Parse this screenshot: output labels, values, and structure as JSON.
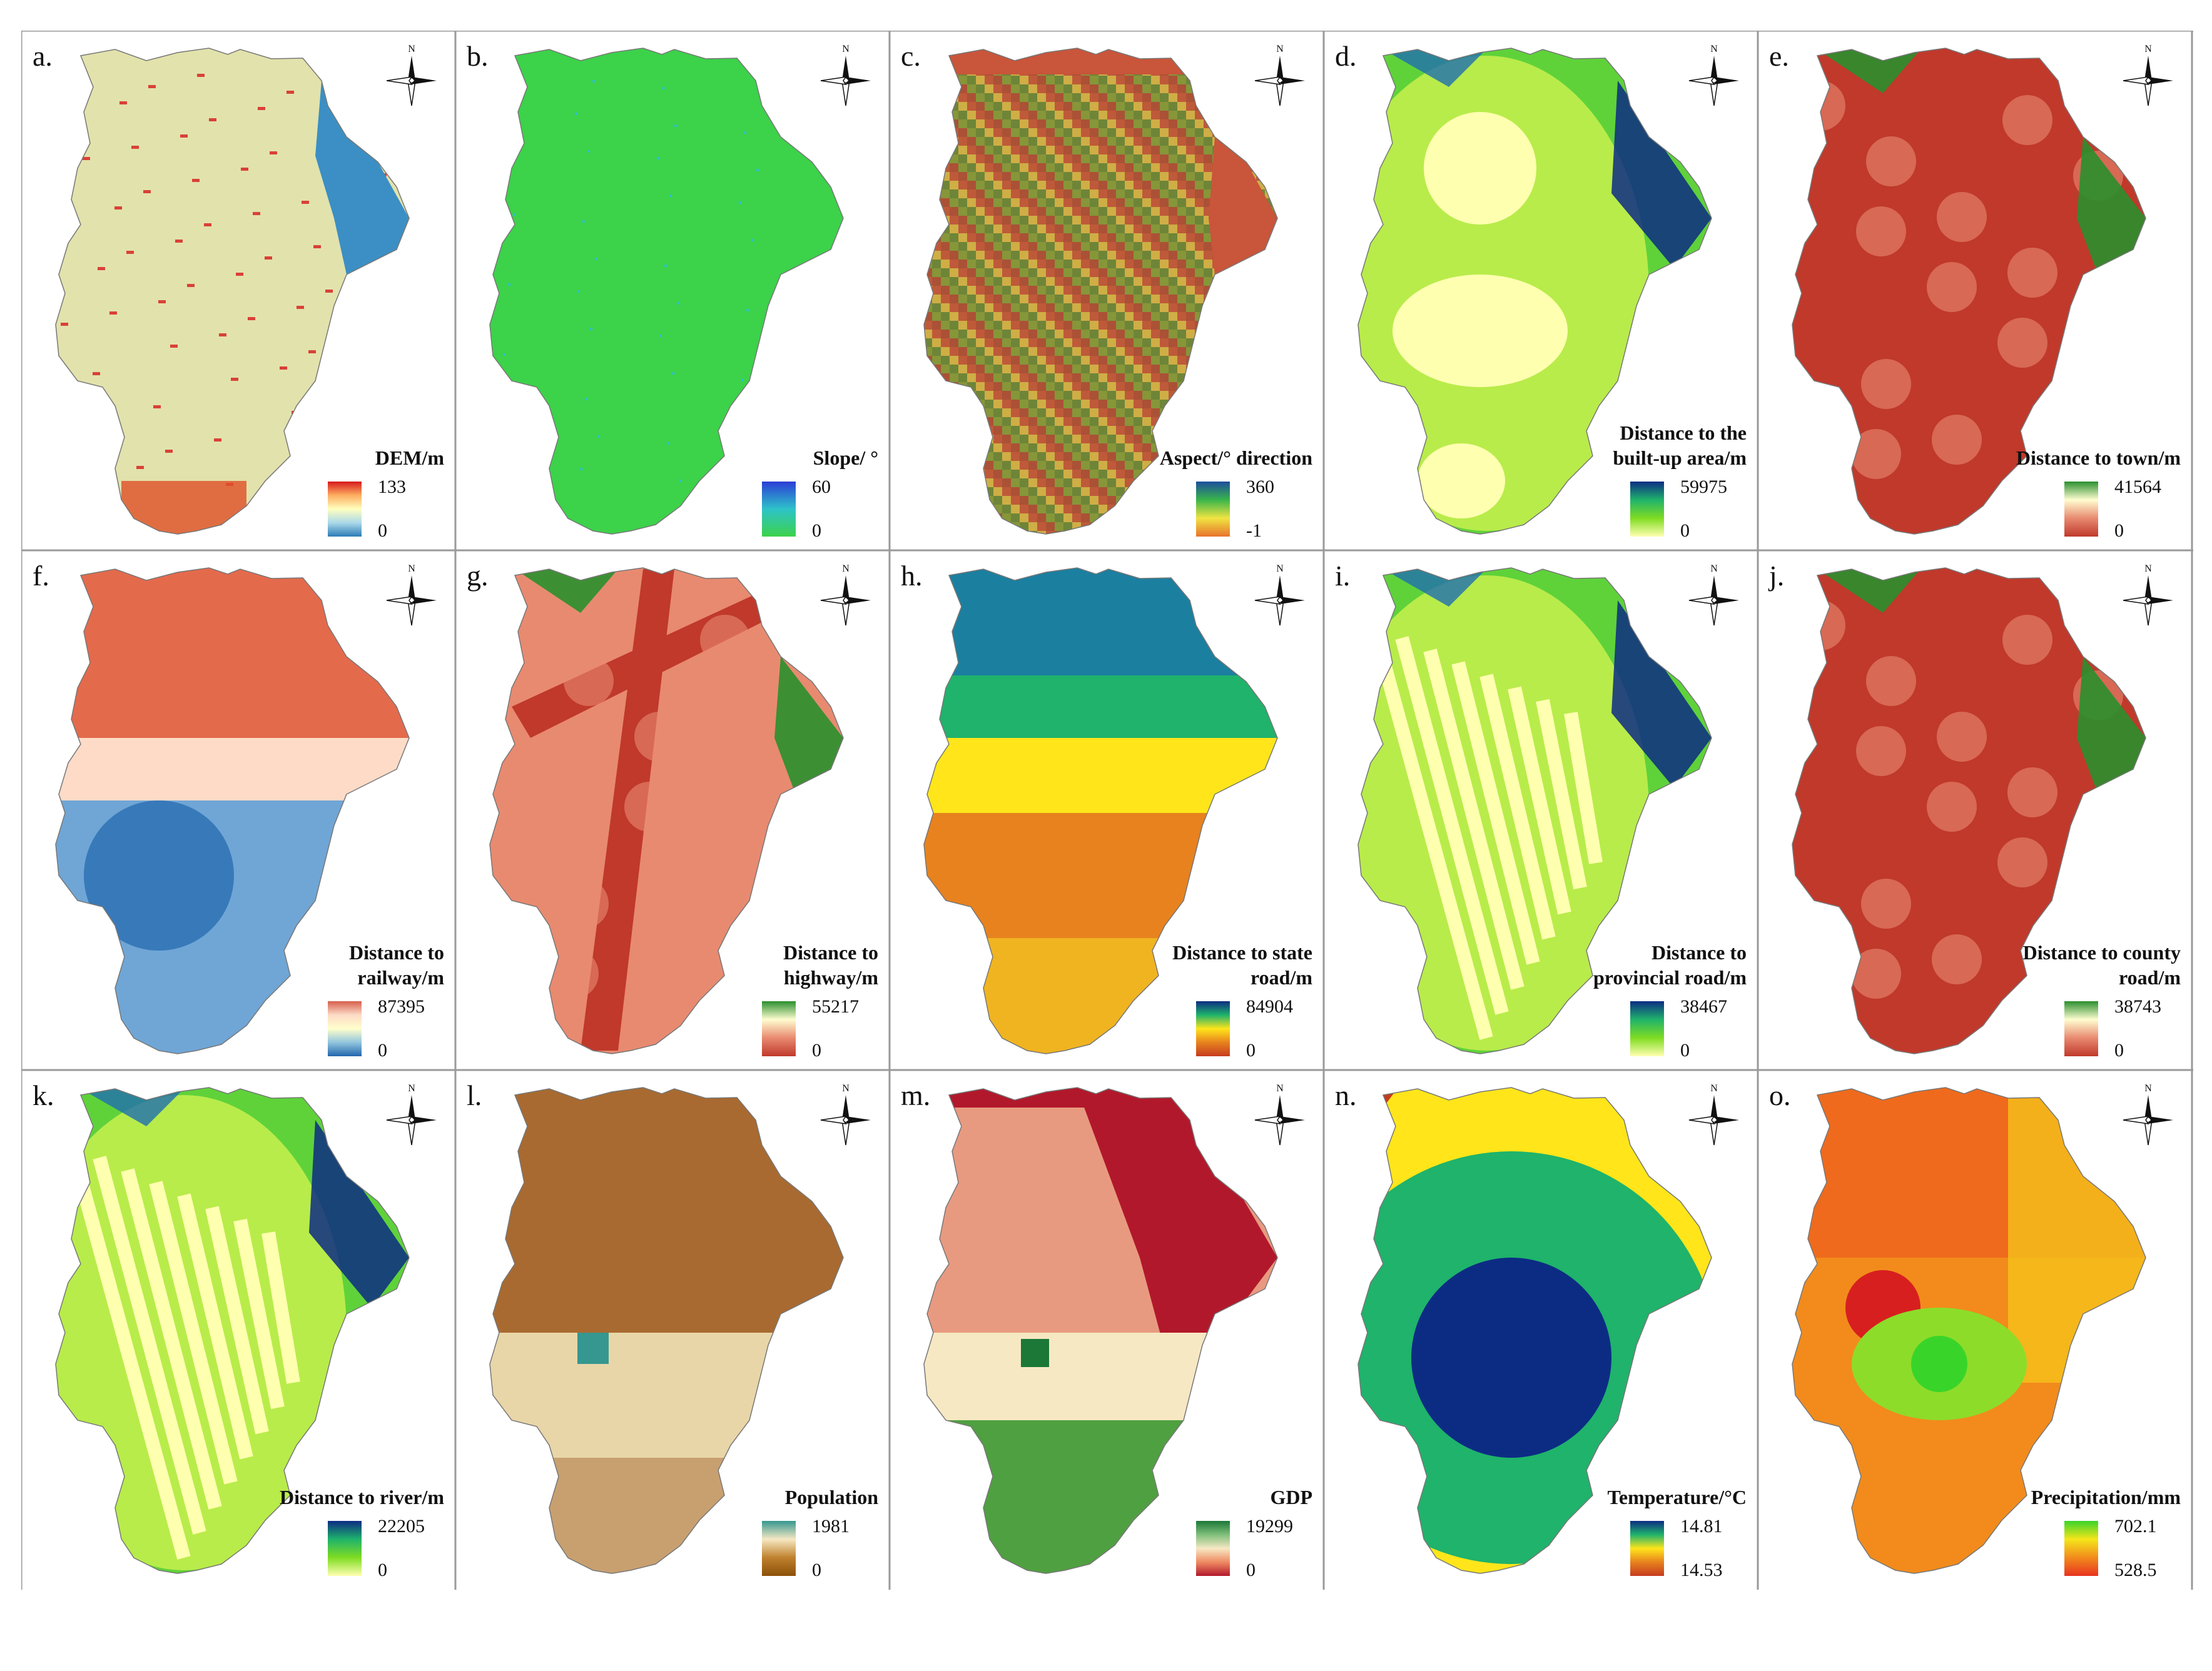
{
  "panels": [
    {
      "id": "a",
      "letter": "a.",
      "legend_title": "DEM/m",
      "max": "133",
      "min": "0",
      "colors": [
        "#d7191c",
        "#fdae61",
        "#ffffbf",
        "#abd9e9",
        "#2c7bb6"
      ]
    },
    {
      "id": "b",
      "letter": "b.",
      "legend_title": "Slope/ °",
      "max": "60",
      "min": "0",
      "colors": [
        "#2c3dd6",
        "#2dc3c9",
        "#3cd24a"
      ]
    },
    {
      "id": "c",
      "letter": "c.",
      "legend_title": "Aspect/° direction",
      "max": "360",
      "min": "-1",
      "colors": [
        "#1d4e9e",
        "#39b54a",
        "#f0e442",
        "#e8732c"
      ]
    },
    {
      "id": "d",
      "letter": "d.",
      "legend_title": "Distance to the built-up area/m",
      "max": "59975",
      "min": "0",
      "colors": [
        "#0c2c84",
        "#1fb36b",
        "#7fdc22",
        "#ffffb0"
      ]
    },
    {
      "id": "e",
      "letter": "e.",
      "legend_title": "Distance to town/m",
      "max": "41564",
      "min": "0",
      "colors": [
        "#2a8f2e",
        "#fffdd0",
        "#e88a70",
        "#c0392b"
      ]
    },
    {
      "id": "f",
      "letter": "f.",
      "legend_title": "Distance to railway/m",
      "max": "87395",
      "min": "0",
      "colors": [
        "#d6604d",
        "#fddbc7",
        "#ffffcc",
        "#92c5de",
        "#2166ac"
      ]
    },
    {
      "id": "g",
      "letter": "g.",
      "legend_title": "Distance to highway/m",
      "max": "55217",
      "min": "0",
      "colors": [
        "#2a8f2e",
        "#fffdd0",
        "#e88a70",
        "#c0392b"
      ]
    },
    {
      "id": "h",
      "letter": "h.",
      "legend_title": "Distance to state road/m",
      "max": "84904",
      "min": "0",
      "colors": [
        "#0c2c84",
        "#1fb36b",
        "#ffe51a",
        "#e7821e",
        "#c63b1f"
      ]
    },
    {
      "id": "i",
      "letter": "i.",
      "legend_title": "Distance to provincial road/m",
      "max": "38467",
      "min": "0",
      "colors": [
        "#0c2c84",
        "#1fb36b",
        "#7fdc22",
        "#ffffb0"
      ]
    },
    {
      "id": "j",
      "letter": "j.",
      "legend_title": "Distance to county road/m",
      "max": "38743",
      "min": "0",
      "colors": [
        "#2a8f2e",
        "#fffdd0",
        "#e88a70",
        "#c0392b"
      ]
    },
    {
      "id": "k",
      "letter": "k.",
      "legend_title": "Distance to river/m",
      "max": "22205",
      "min": "0",
      "colors": [
        "#0c2c84",
        "#1fb36b",
        "#7fdc22",
        "#ffffb0"
      ]
    },
    {
      "id": "l",
      "letter": "l.",
      "legend_title": "Population",
      "max": "1981",
      "min": "0",
      "colors": [
        "#35978f",
        "#f6e8c3",
        "#bf812d",
        "#8c510a"
      ]
    },
    {
      "id": "m",
      "letter": "m.",
      "legend_title": "GDP",
      "max": "19299",
      "min": "0",
      "colors": [
        "#1b7837",
        "#7fbf7b",
        "#f6e8c3",
        "#ef8a62",
        "#b2182b"
      ]
    },
    {
      "id": "n",
      "letter": "n.",
      "legend_title": "Temperature/°C",
      "max": "14.81",
      "min": "14.53",
      "colors": [
        "#0c2c84",
        "#1fb36b",
        "#ffe51a",
        "#e7821e",
        "#c63b1f"
      ]
    },
    {
      "id": "o",
      "letter": "o.",
      "legend_title": "Precipitation/mm",
      "max": "702.1",
      "min": "528.5",
      "colors": [
        "#39d42a",
        "#f5e61a",
        "#f28b1c",
        "#e8321f"
      ]
    }
  ],
  "north_label": "N"
}
